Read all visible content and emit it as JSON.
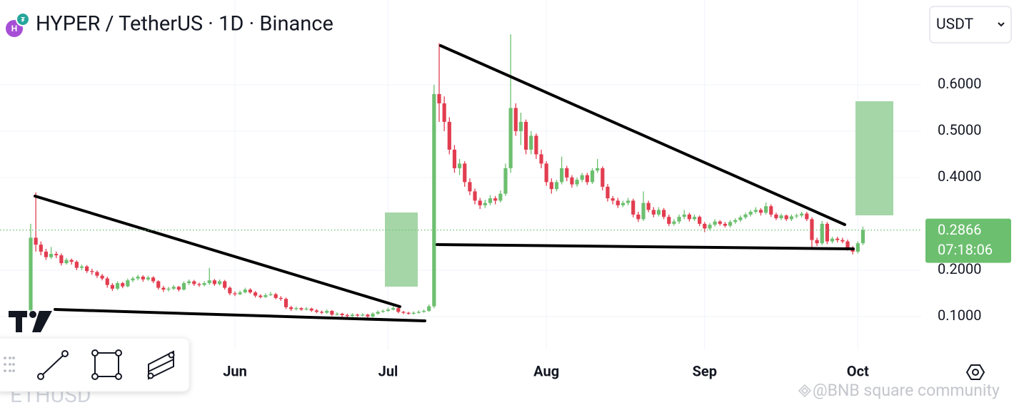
{
  "chart_data": {
    "type": "candlestick",
    "title": "HYPER / TetherUS · 1D · Binance",
    "currency": "USDT",
    "countdown": "07:18:06",
    "background_symbol": "ETHUSD",
    "watermark": "@BNB square community",
    "up_color": "#6cbf6f",
    "down_color": "#e23d50",
    "grid": true,
    "ylim": [
      0.029,
      0.783
    ],
    "yticks": [
      {
        "value": 0.1,
        "label": "0.1000"
      },
      {
        "value": 0.2,
        "label": "0.2000"
      },
      {
        "value": 0.4,
        "label": "0.4000"
      },
      {
        "value": 0.5,
        "label": "0.5000"
      },
      {
        "value": 0.6,
        "label": "0.6000"
      }
    ],
    "categories": [
      null,
      null,
      null,
      null,
      null,
      null,
      null,
      null,
      null,
      null,
      null,
      null,
      null,
      null,
      null,
      null,
      null,
      null,
      null,
      null,
      null,
      null,
      null,
      null,
      null,
      null,
      null,
      null,
      null,
      null,
      null,
      null,
      null,
      null,
      null,
      null,
      null,
      null,
      null,
      null,
      "Jun",
      null,
      null,
      null,
      null,
      null,
      null,
      null,
      null,
      null,
      null,
      null,
      null,
      null,
      null,
      null,
      null,
      null,
      null,
      null,
      null,
      null,
      null,
      null,
      null,
      null,
      null,
      null,
      null,
      null,
      "Jul",
      null,
      null,
      null,
      null,
      null,
      null,
      null,
      null,
      null,
      null,
      null,
      null,
      null,
      null,
      null,
      null,
      null,
      null,
      null,
      null,
      null,
      null,
      null,
      null,
      null,
      null,
      null,
      null,
      null,
      null,
      "Aug",
      null,
      null,
      null,
      null,
      null,
      null,
      null,
      null,
      null,
      null,
      null,
      null,
      null,
      null,
      null,
      null,
      null,
      null,
      null,
      null,
      null,
      null,
      null,
      null,
      null,
      null,
      null,
      null,
      null,
      null,
      "Sep",
      null,
      null,
      null,
      null,
      null,
      null,
      null,
      null,
      null,
      null,
      null,
      null,
      null,
      null,
      null,
      null,
      null,
      null,
      null,
      null,
      null,
      null,
      null,
      null,
      null,
      null,
      null,
      null,
      null,
      "Oct",
      null
    ],
    "ohlc": [
      [
        0.114,
        0.3,
        0.11,
        0.27
      ],
      [
        0.27,
        0.368,
        0.24,
        0.255
      ],
      [
        0.255,
        0.262,
        0.232,
        0.24
      ],
      [
        0.24,
        0.246,
        0.222,
        0.228
      ],
      [
        0.228,
        0.25,
        0.224,
        0.235
      ],
      [
        0.235,
        0.24,
        0.226,
        0.232
      ],
      [
        0.232,
        0.236,
        0.21,
        0.215
      ],
      [
        0.215,
        0.226,
        0.212,
        0.222
      ],
      [
        0.222,
        0.225,
        0.212,
        0.218
      ],
      [
        0.218,
        0.221,
        0.2,
        0.205
      ],
      [
        0.205,
        0.212,
        0.2,
        0.208
      ],
      [
        0.208,
        0.211,
        0.194,
        0.198
      ],
      [
        0.198,
        0.203,
        0.19,
        0.196
      ],
      [
        0.196,
        0.199,
        0.183,
        0.188
      ],
      [
        0.188,
        0.192,
        0.178,
        0.182
      ],
      [
        0.182,
        0.186,
        0.162,
        0.168
      ],
      [
        0.168,
        0.172,
        0.155,
        0.16
      ],
      [
        0.16,
        0.176,
        0.157,
        0.172
      ],
      [
        0.172,
        0.175,
        0.161,
        0.165
      ],
      [
        0.165,
        0.182,
        0.163,
        0.178
      ],
      [
        0.178,
        0.186,
        0.174,
        0.182
      ],
      [
        0.182,
        0.19,
        0.178,
        0.186
      ],
      [
        0.186,
        0.189,
        0.175,
        0.18
      ],
      [
        0.18,
        0.188,
        0.177,
        0.184
      ],
      [
        0.184,
        0.187,
        0.172,
        0.176
      ],
      [
        0.176,
        0.178,
        0.158,
        0.162
      ],
      [
        0.162,
        0.166,
        0.153,
        0.158
      ],
      [
        0.158,
        0.164,
        0.154,
        0.16
      ],
      [
        0.16,
        0.168,
        0.157,
        0.164
      ],
      [
        0.164,
        0.166,
        0.154,
        0.158
      ],
      [
        0.158,
        0.176,
        0.156,
        0.172
      ],
      [
        0.172,
        0.18,
        0.168,
        0.176
      ],
      [
        0.176,
        0.179,
        0.166,
        0.17
      ],
      [
        0.17,
        0.173,
        0.164,
        0.168
      ],
      [
        0.168,
        0.176,
        0.165,
        0.172
      ],
      [
        0.172,
        0.205,
        0.168,
        0.178
      ],
      [
        0.178,
        0.181,
        0.166,
        0.17
      ],
      [
        0.17,
        0.18,
        0.167,
        0.176
      ],
      [
        0.176,
        0.179,
        0.158,
        0.162
      ],
      [
        0.162,
        0.165,
        0.146,
        0.15
      ],
      [
        0.15,
        0.154,
        0.144,
        0.148
      ],
      [
        0.148,
        0.156,
        0.146,
        0.152
      ],
      [
        0.152,
        0.162,
        0.15,
        0.158
      ],
      [
        0.158,
        0.161,
        0.149,
        0.152
      ],
      [
        0.152,
        0.155,
        0.141,
        0.145
      ],
      [
        0.145,
        0.148,
        0.139,
        0.142
      ],
      [
        0.142,
        0.15,
        0.14,
        0.146
      ],
      [
        0.146,
        0.153,
        0.144,
        0.148
      ],
      [
        0.148,
        0.151,
        0.137,
        0.14
      ],
      [
        0.14,
        0.144,
        0.134,
        0.138
      ],
      [
        0.138,
        0.141,
        0.116,
        0.12
      ],
      [
        0.12,
        0.123,
        0.112,
        0.116
      ],
      [
        0.116,
        0.121,
        0.113,
        0.118
      ],
      [
        0.118,
        0.12,
        0.112,
        0.115
      ],
      [
        0.115,
        0.12,
        0.113,
        0.117
      ],
      [
        0.117,
        0.119,
        0.11,
        0.113
      ],
      [
        0.113,
        0.116,
        0.107,
        0.11
      ],
      [
        0.11,
        0.113,
        0.105,
        0.108
      ],
      [
        0.108,
        0.115,
        0.106,
        0.112
      ],
      [
        0.112,
        0.114,
        0.101,
        0.104
      ],
      [
        0.104,
        0.109,
        0.102,
        0.106
      ],
      [
        0.106,
        0.108,
        0.099,
        0.103
      ],
      [
        0.103,
        0.106,
        0.096,
        0.101
      ],
      [
        0.101,
        0.107,
        0.099,
        0.104
      ],
      [
        0.104,
        0.106,
        0.099,
        0.102
      ],
      [
        0.102,
        0.107,
        0.1,
        0.104
      ],
      [
        0.104,
        0.106,
        0.097,
        0.1
      ],
      [
        0.1,
        0.109,
        0.098,
        0.106
      ],
      [
        0.106,
        0.113,
        0.104,
        0.11
      ],
      [
        0.11,
        0.115,
        0.108,
        0.112
      ],
      [
        0.112,
        0.119,
        0.11,
        0.115
      ],
      [
        0.115,
        0.122,
        0.113,
        0.118
      ],
      [
        0.118,
        0.12,
        0.107,
        0.11
      ],
      [
        0.11,
        0.112,
        0.105,
        0.108
      ],
      [
        0.108,
        0.11,
        0.104,
        0.106
      ],
      [
        0.106,
        0.111,
        0.104,
        0.108
      ],
      [
        0.108,
        0.113,
        0.106,
        0.11
      ],
      [
        0.11,
        0.115,
        0.108,
        0.112
      ],
      [
        0.112,
        0.126,
        0.11,
        0.122
      ],
      [
        0.122,
        0.6,
        0.118,
        0.58
      ],
      [
        0.58,
        0.69,
        0.52,
        0.56
      ],
      [
        0.56,
        0.575,
        0.5,
        0.52
      ],
      [
        0.52,
        0.53,
        0.45,
        0.46
      ],
      [
        0.46,
        0.47,
        0.41,
        0.42
      ],
      [
        0.42,
        0.44,
        0.405,
        0.43
      ],
      [
        0.43,
        0.435,
        0.38,
        0.39
      ],
      [
        0.39,
        0.398,
        0.362,
        0.37
      ],
      [
        0.37,
        0.376,
        0.342,
        0.35
      ],
      [
        0.35,
        0.356,
        0.332,
        0.34
      ],
      [
        0.34,
        0.352,
        0.334,
        0.345
      ],
      [
        0.345,
        0.362,
        0.34,
        0.355
      ],
      [
        0.355,
        0.36,
        0.342,
        0.35
      ],
      [
        0.35,
        0.372,
        0.346,
        0.365
      ],
      [
        0.365,
        0.43,
        0.36,
        0.42
      ],
      [
        0.42,
        0.709,
        0.41,
        0.55
      ],
      [
        0.55,
        0.56,
        0.49,
        0.5
      ],
      [
        0.5,
        0.54,
        0.47,
        0.52
      ],
      [
        0.52,
        0.525,
        0.45,
        0.46
      ],
      [
        0.46,
        0.5,
        0.45,
        0.49
      ],
      [
        0.49,
        0.495,
        0.44,
        0.45
      ],
      [
        0.45,
        0.46,
        0.42,
        0.43
      ],
      [
        0.43,
        0.435,
        0.382,
        0.39
      ],
      [
        0.39,
        0.398,
        0.365,
        0.375
      ],
      [
        0.375,
        0.395,
        0.37,
        0.39
      ],
      [
        0.39,
        0.445,
        0.385,
        0.42
      ],
      [
        0.42,
        0.425,
        0.392,
        0.4
      ],
      [
        0.4,
        0.405,
        0.378,
        0.385
      ],
      [
        0.385,
        0.4,
        0.38,
        0.395
      ],
      [
        0.395,
        0.41,
        0.39,
        0.405
      ],
      [
        0.405,
        0.41,
        0.384,
        0.39
      ],
      [
        0.39,
        0.42,
        0.386,
        0.415
      ],
      [
        0.415,
        0.44,
        0.41,
        0.42
      ],
      [
        0.42,
        0.424,
        0.372,
        0.38
      ],
      [
        0.38,
        0.386,
        0.348,
        0.355
      ],
      [
        0.355,
        0.36,
        0.342,
        0.35
      ],
      [
        0.35,
        0.356,
        0.334,
        0.34
      ],
      [
        0.34,
        0.35,
        0.336,
        0.345
      ],
      [
        0.345,
        0.356,
        0.34,
        0.35
      ],
      [
        0.35,
        0.354,
        0.314,
        0.32
      ],
      [
        0.32,
        0.326,
        0.304,
        0.31
      ],
      [
        0.31,
        0.37,
        0.306,
        0.345
      ],
      [
        0.345,
        0.35,
        0.325,
        0.33
      ],
      [
        0.33,
        0.336,
        0.314,
        0.32
      ],
      [
        0.32,
        0.336,
        0.316,
        0.33
      ],
      [
        0.33,
        0.334,
        0.31,
        0.315
      ],
      [
        0.315,
        0.32,
        0.295,
        0.3
      ],
      [
        0.3,
        0.31,
        0.296,
        0.305
      ],
      [
        0.305,
        0.32,
        0.3,
        0.315
      ],
      [
        0.315,
        0.33,
        0.31,
        0.32
      ],
      [
        0.32,
        0.324,
        0.305,
        0.31
      ],
      [
        0.31,
        0.32,
        0.306,
        0.315
      ],
      [
        0.315,
        0.318,
        0.295,
        0.3
      ],
      [
        0.3,
        0.304,
        0.282,
        0.29
      ],
      [
        0.29,
        0.302,
        0.286,
        0.298
      ],
      [
        0.298,
        0.31,
        0.294,
        0.305
      ],
      [
        0.305,
        0.308,
        0.296,
        0.3
      ],
      [
        0.3,
        0.304,
        0.292,
        0.296
      ],
      [
        0.296,
        0.308,
        0.292,
        0.304
      ],
      [
        0.304,
        0.312,
        0.3,
        0.308
      ],
      [
        0.308,
        0.318,
        0.304,
        0.314
      ],
      [
        0.314,
        0.324,
        0.31,
        0.32
      ],
      [
        0.32,
        0.33,
        0.316,
        0.326
      ],
      [
        0.326,
        0.336,
        0.322,
        0.33
      ],
      [
        0.33,
        0.334,
        0.318,
        0.324
      ],
      [
        0.324,
        0.346,
        0.32,
        0.338
      ],
      [
        0.338,
        0.342,
        0.315,
        0.32
      ],
      [
        0.32,
        0.324,
        0.308,
        0.312
      ],
      [
        0.312,
        0.322,
        0.308,
        0.318
      ],
      [
        0.318,
        0.32,
        0.306,
        0.31
      ],
      [
        0.31,
        0.32,
        0.306,
        0.316
      ],
      [
        0.316,
        0.322,
        0.312,
        0.318
      ],
      [
        0.318,
        0.326,
        0.314,
        0.322
      ],
      [
        0.322,
        0.326,
        0.306,
        0.31
      ],
      [
        0.31,
        0.314,
        0.248,
        0.265
      ],
      [
        0.265,
        0.27,
        0.252,
        0.258
      ],
      [
        0.258,
        0.306,
        0.254,
        0.3
      ],
      [
        0.3,
        0.304,
        0.256,
        0.262
      ],
      [
        0.262,
        0.272,
        0.258,
        0.268
      ],
      [
        0.268,
        0.272,
        0.26,
        0.265
      ],
      [
        0.265,
        0.27,
        0.258,
        0.262
      ],
      [
        0.262,
        0.266,
        0.242,
        0.248
      ],
      [
        0.248,
        0.252,
        0.234,
        0.24
      ],
      [
        0.24,
        0.262,
        0.236,
        0.258
      ],
      [
        0.258,
        0.294,
        0.254,
        0.2866
      ]
    ]
  }
}
